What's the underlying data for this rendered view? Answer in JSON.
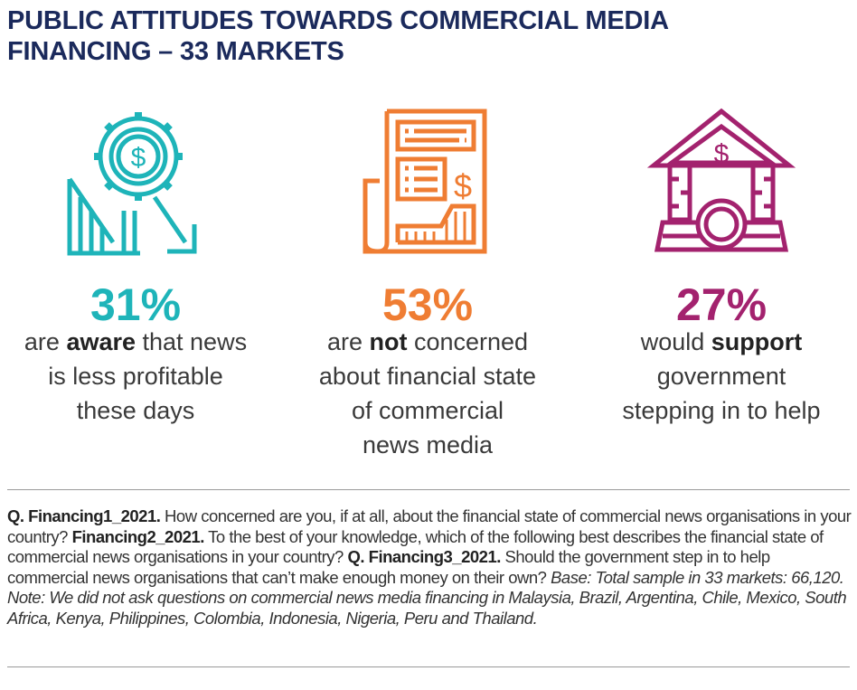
{
  "title_lines": [
    "PUBLIC ATTITUDES TOWARDS COMMERCIAL MEDIA",
    "FINANCING – 33 MARKETS"
  ],
  "colors": {
    "title": "#1b2a5c",
    "aware": "#1eb4b9",
    "not_concerned": "#ef7d33",
    "support": "#a3226e"
  },
  "stats": [
    {
      "icon": "gear-dollar-decline-icon",
      "value": "31%",
      "pre": "are ",
      "bold": "aware",
      "post": " that news",
      "lines": [
        "is less profitable",
        "these days"
      ]
    },
    {
      "icon": "newspaper-dollar-chart-icon",
      "value": "53%",
      "pre": "are ",
      "bold": "not",
      "post": " concerned",
      "lines": [
        "about financial state",
        "of commercial",
        "news media"
      ]
    },
    {
      "icon": "bank-dollar-coin-icon",
      "value": "27%",
      "pre": "would ",
      "bold": "support",
      "post": "",
      "lines": [
        "government",
        "stepping in to help"
      ]
    }
  ],
  "notes": {
    "q1_label": "Q. Financing1_2021.",
    "q1_text": " How concerned are you, if at all, about the financial state of commercial news organisations in your country? ",
    "q2_label": "Financing2_2021.",
    "q2_text": " To the best of your knowledge, which of the following best describes the financial state of commercial news organisations in your country? ",
    "q3_label": "Q. Financing3_2021.",
    "q3_text": " Should the government step in to help commercial news organisations that can’t make enough money on their own? ",
    "base_note": "Base: Total sample in 33 markets: 66,120. Note: We did not ask questions on commercial news media financing in Malaysia, Brazil, Argentina, Chile, Mexico, South Africa, Kenya, Philippines, Colombia, Indonesia, Nigeria, Peru and Thailand."
  }
}
